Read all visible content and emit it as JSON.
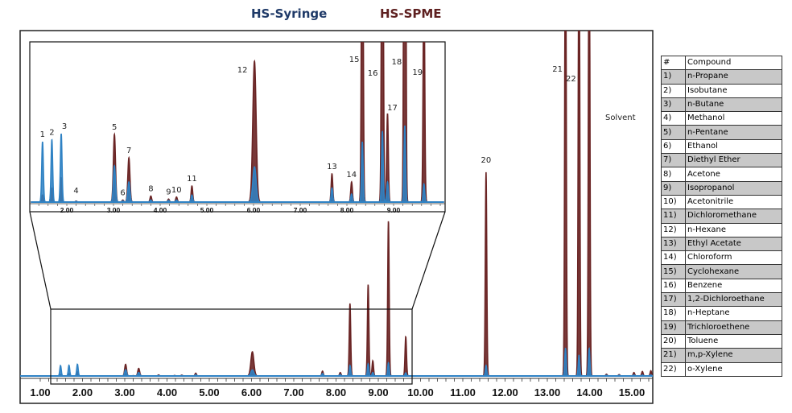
{
  "chart_data": {
    "type": "line",
    "title_series": [
      {
        "name": "HS-Syringe",
        "color": "#1f3a68"
      },
      {
        "name": "HS-SPME",
        "color": "#5e2020"
      }
    ],
    "xlabel": "",
    "ylabel": "",
    "x_ticks": [
      "1.00",
      "2.00",
      "3.00",
      "4.00",
      "5.00",
      "6.00",
      "7.00",
      "8.00",
      "9.00",
      "10.00",
      "11.00",
      "12.00",
      "13.00",
      "14.00",
      "15.00"
    ],
    "xlim": [
      0.52,
      15.5
    ],
    "ylim_relative": [
      0,
      100
    ],
    "inset": {
      "xlim": [
        1.23,
        10.08
      ],
      "ylim_relative": [
        0,
        8
      ],
      "x_ticks": [
        "2.00",
        "3.00",
        "4.00",
        "5.00",
        "6.00",
        "7.00",
        "8.00",
        "9.00"
      ]
    },
    "trace_colors": {
      "HS-Syringe": "#2f82c4",
      "HS-SPME": "#6a2424"
    },
    "peaks": [
      {
        "label": "1",
        "rt": 1.48,
        "syringe": 3.0,
        "spme": 0.35
      },
      {
        "label": "2",
        "rt": 1.68,
        "syringe": 3.1,
        "spme": 0.7
      },
      {
        "label": "3",
        "rt": 1.88,
        "syringe": 3.4,
        "spme": 1.2
      },
      {
        "label": "4",
        "rt": 2.2,
        "syringe": 0.03,
        "spme": 0.05
      },
      {
        "label": "5",
        "rt": 3.02,
        "syringe": 1.8,
        "spme": 3.36
      },
      {
        "label": "6",
        "rt": 3.2,
        "syringe": 0.05,
        "spme": 0.1
      },
      {
        "label": "7",
        "rt": 3.33,
        "syringe": 1.0,
        "spme": 2.2
      },
      {
        "label": "8",
        "rt": 3.8,
        "syringe": 0.1,
        "spme": 0.3
      },
      {
        "label": "9",
        "rt": 4.18,
        "syringe": 0.08,
        "spme": 0.15
      },
      {
        "label": "10",
        "rt": 4.35,
        "syringe": 0.1,
        "spme": 0.25
      },
      {
        "label": "11",
        "rt": 4.68,
        "syringe": 0.35,
        "spme": 0.8
      },
      {
        "label": "12",
        "rt": 6.02,
        "syringe": 1.75,
        "spme": 7.0
      },
      {
        "label": "13",
        "rt": 7.68,
        "syringe": 0.7,
        "spme": 1.4
      },
      {
        "label": "14",
        "rt": 8.1,
        "syringe": 0.4,
        "spme": 1.0
      },
      {
        "label": "15",
        "rt": 8.33,
        "syringe": 3.0,
        "spme": 21
      },
      {
        "label": "16",
        "rt": 8.76,
        "syringe": 3.5,
        "spme": 26.5
      },
      {
        "label": "17",
        "rt": 8.87,
        "syringe": 1.0,
        "spme": 4.4
      },
      {
        "label": "18",
        "rt": 9.24,
        "syringe": 3.8,
        "spme": 45
      },
      {
        "label": "19",
        "rt": 9.65,
        "syringe": 0.9,
        "spme": 11.4
      },
      {
        "label": "20",
        "rt": 11.55,
        "syringe": 3.0,
        "spme": 59
      },
      {
        "label": "21",
        "rt": 13.43,
        "syringe": 8.0,
        "spme": 150
      },
      {
        "label": "22",
        "rt": 13.75,
        "syringe": 6.0,
        "spme": 150
      },
      {
        "label": "Solvent",
        "rt": 13.99,
        "syringe": 8.0,
        "spme": 150
      }
    ],
    "minor_peaks": [
      {
        "rt": 14.4,
        "syringe": 0.2,
        "spme": 0.5
      },
      {
        "rt": 14.7,
        "syringe": 0.2,
        "spme": 0.4
      },
      {
        "rt": 15.05,
        "syringe": 0.3,
        "spme": 1.0
      },
      {
        "rt": 15.25,
        "syringe": 0.3,
        "spme": 1.3
      },
      {
        "rt": 15.45,
        "syringe": 0.3,
        "spme": 1.5
      }
    ]
  },
  "legend_table": {
    "headers": [
      "#",
      "Compound"
    ],
    "rows": [
      [
        "1)",
        "n-Propane"
      ],
      [
        "2)",
        "Isobutane"
      ],
      [
        "3)",
        "n-Butane"
      ],
      [
        "4)",
        "Methanol"
      ],
      [
        "5)",
        "n-Pentane"
      ],
      [
        "6)",
        "Ethanol"
      ],
      [
        "7)",
        "Diethyl Ether"
      ],
      [
        "8)",
        "Acetone"
      ],
      [
        "9)",
        "Isopropanol"
      ],
      [
        "10)",
        "Acetonitrile"
      ],
      [
        "11)",
        "Dichloromethane"
      ],
      [
        "12)",
        "n-Hexane"
      ],
      [
        "13)",
        "Ethyl Acetate"
      ],
      [
        "14)",
        "Chloroform"
      ],
      [
        "15)",
        "Cyclohexane"
      ],
      [
        "16)",
        "Benzene"
      ],
      [
        "17)",
        "1,2-Dichloroethane"
      ],
      [
        "18)",
        "n-Heptane"
      ],
      [
        "19)",
        "Trichloroethene"
      ],
      [
        "20)",
        "Toluene"
      ],
      [
        "21)",
        "m,p-Xylene"
      ],
      [
        "22)",
        "o-Xylene"
      ]
    ]
  }
}
